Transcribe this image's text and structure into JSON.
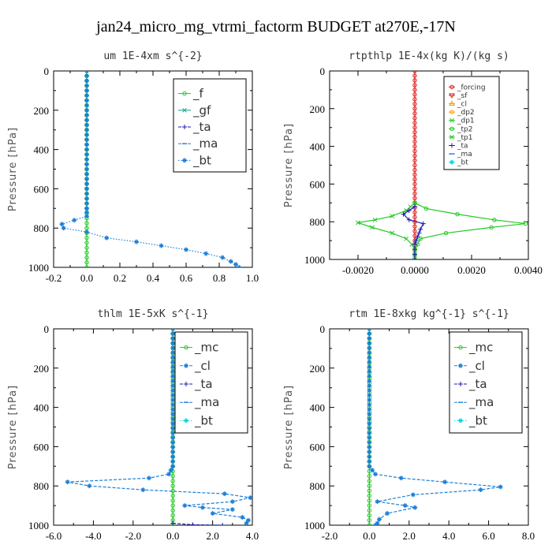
{
  "figure_title": "jan24_micro_mg_vtrmi_factorm  BUDGET at270E,-17N",
  "colors": {
    "green": "#22c922",
    "blue_dash": "#1a7fd9",
    "navy": "#1a1ab0",
    "cyan": "#10d4e6",
    "red": "#e02020",
    "orange": "#f0a000",
    "teal": "#1a9a8a"
  },
  "chart_data": [
    {
      "type": "line",
      "title": "um  1E-4xm s^{-2}",
      "xlabel": "",
      "ylabel": "Pressure [hPa]",
      "xlim": [
        -0.2,
        1.0
      ],
      "ylim": [
        1000,
        0
      ],
      "xticks": [
        -0.2,
        0.0,
        0.2,
        0.4,
        0.6,
        0.8,
        1.0
      ],
      "xtick_labels": [
        "-0.2",
        "0.0",
        "0.2",
        "0.4",
        "0.6",
        "0.8",
        "1.0"
      ],
      "yticks": [
        0,
        200,
        400,
        600,
        800,
        1000
      ],
      "ytick_labels": [
        "0",
        "200",
        "400",
        "600",
        "800",
        "1000"
      ],
      "grid": false,
      "legend": {
        "position": "top-right",
        "size": "large"
      },
      "series": [
        {
          "name": "_f",
          "color": "#22c922",
          "marker": "circle",
          "dash": "solid",
          "points": [
            [
              0,
              0
            ],
            [
              0,
              100
            ],
            [
              0,
              200
            ],
            [
              0,
              300
            ],
            [
              0,
              400
            ],
            [
              0,
              500
            ],
            [
              0,
              600
            ],
            [
              0,
              700
            ],
            [
              0,
              800
            ],
            [
              0,
              900
            ],
            [
              0,
              1000
            ]
          ]
        },
        {
          "name": "_gf",
          "color": "#1a9a8a",
          "marker": "x",
          "dash": "solid",
          "points": []
        },
        {
          "name": "_ta",
          "color": "#1a1ab0",
          "marker": "plus",
          "dash": "dashed",
          "points": []
        },
        {
          "name": "_ma",
          "color": "#1a7fd9",
          "marker": "dash",
          "dash": "dashed",
          "points": []
        },
        {
          "name": "_bt",
          "color": "#1a7fd9",
          "marker": "star",
          "dash": "dotted",
          "points": [
            [
              0,
              0
            ],
            [
              0,
              100
            ],
            [
              0,
              200
            ],
            [
              0,
              300
            ],
            [
              0,
              400
            ],
            [
              0,
              500
            ],
            [
              0,
              600
            ],
            [
              0,
              700
            ],
            [
              0,
              740
            ],
            [
              -0.15,
              780
            ],
            [
              -0.14,
              800
            ],
            [
              0.0,
              820
            ],
            [
              0.12,
              850
            ],
            [
              0.3,
              870
            ],
            [
              0.45,
              890
            ],
            [
              0.6,
              910
            ],
            [
              0.72,
              930
            ],
            [
              0.82,
              950
            ],
            [
              0.87,
              970
            ],
            [
              0.9,
              985
            ],
            [
              0.92,
              1000
            ]
          ]
        }
      ]
    },
    {
      "type": "line",
      "title": "rtpthlp  1E-4x(kg K)/(kg s)",
      "xlabel": "",
      "ylabel": "Pressure [hPa]",
      "xlim": [
        -0.003,
        0.004
      ],
      "ylim": [
        1000,
        0
      ],
      "xticks": [
        -0.002,
        0.0,
        0.002,
        0.004
      ],
      "xtick_labels": [
        "-0.0020",
        "0.0000",
        "0.0020",
        "0.0040"
      ],
      "yticks": [
        0,
        200,
        400,
        600,
        800,
        1000
      ],
      "ytick_labels": [
        "0",
        "200",
        "400",
        "600",
        "800",
        "1000"
      ],
      "grid": false,
      "legend": {
        "position": "top-right",
        "size": "small"
      },
      "series": [
        {
          "name": "_forcing",
          "color": "#e02020",
          "marker": "circle",
          "dash": "solid",
          "points": [
            [
              0,
              0
            ],
            [
              0,
              100
            ],
            [
              0,
              200
            ],
            [
              0,
              300
            ],
            [
              0,
              400
            ],
            [
              0,
              500
            ],
            [
              0,
              600
            ],
            [
              0,
              700
            ],
            [
              0,
              800
            ],
            [
              0,
              900
            ],
            [
              0,
              1000
            ]
          ]
        },
        {
          "name": "_sf",
          "color": "#e02020",
          "marker": "triangle-down",
          "dash": "solid",
          "points": []
        },
        {
          "name": "_cl",
          "color": "#f0a000",
          "marker": "triangle-up",
          "dash": "solid",
          "points": []
        },
        {
          "name": "_dp2",
          "color": "#f0a000",
          "marker": "circle",
          "dash": "solid",
          "points": []
        },
        {
          "name": "_dp1",
          "color": "#22c922",
          "marker": "x",
          "dash": "solid",
          "points": []
        },
        {
          "name": "_tp2",
          "color": "#22c922",
          "marker": "circle",
          "dash": "solid",
          "points": [
            [
              0,
              700
            ],
            [
              0.0004,
              730
            ],
            [
              0.0015,
              760
            ],
            [
              0.0028,
              790
            ],
            [
              0.0039,
              810
            ],
            [
              0.0027,
              830
            ],
            [
              0.0011,
              860
            ],
            [
              0.0002,
              890
            ],
            [
              0.0001,
              920
            ],
            [
              0,
              950
            ],
            [
              0,
              1000
            ]
          ]
        },
        {
          "name": "_tp1",
          "color": "#22c922",
          "marker": "x",
          "dash": "solid",
          "points": [
            [
              0,
              700
            ],
            [
              -0.0003,
              740
            ],
            [
              -0.0008,
              770
            ],
            [
              -0.0014,
              790
            ],
            [
              -0.002,
              805
            ],
            [
              -0.0015,
              830
            ],
            [
              -0.0008,
              860
            ],
            [
              -0.0003,
              890
            ],
            [
              -0.0001,
              920
            ],
            [
              0,
              950
            ],
            [
              0,
              1000
            ]
          ]
        },
        {
          "name": "_ta",
          "color": "#1a1ab0",
          "marker": "plus",
          "dash": "solid",
          "points": [
            [
              0,
              720
            ],
            [
              -0.0004,
              760
            ],
            [
              -0.0002,
              790
            ],
            [
              0.0003,
              810
            ],
            [
              0.0002,
              840
            ],
            [
              0.0001,
              880
            ],
            [
              0,
              920
            ],
            [
              0,
              1000
            ]
          ]
        },
        {
          "name": "_ma",
          "color": "#1a7fd9",
          "marker": "dash",
          "dash": "dashed",
          "points": []
        },
        {
          "name": "_bt",
          "color": "#10d4e6",
          "marker": "star",
          "dash": "dotted",
          "points": []
        }
      ]
    },
    {
      "type": "line",
      "title": "thlm  1E-5xK s^{-1}",
      "xlabel": "",
      "ylabel": "Pressure [hPa]",
      "xlim": [
        -6.0,
        4.0
      ],
      "ylim": [
        1000,
        0
      ],
      "xticks": [
        -6,
        -4,
        -2,
        0,
        2,
        4
      ],
      "xtick_labels": [
        "-6.0",
        "-4.0",
        "-2.0",
        "0.0",
        "2.0",
        "4.0"
      ],
      "yticks": [
        0,
        200,
        400,
        600,
        800,
        1000
      ],
      "ytick_labels": [
        "0",
        "200",
        "400",
        "600",
        "800",
        "1000"
      ],
      "grid": false,
      "legend": {
        "position": "top-right",
        "size": "large"
      },
      "series": [
        {
          "name": "_mc",
          "color": "#22c922",
          "marker": "circle",
          "dash": "solid",
          "points": [
            [
              0,
              0
            ],
            [
              0,
              100
            ],
            [
              0,
              200
            ],
            [
              0,
              300
            ],
            [
              0,
              400
            ],
            [
              0,
              500
            ],
            [
              0,
              600
            ],
            [
              0,
              700
            ],
            [
              0,
              800
            ],
            [
              0,
              900
            ],
            [
              0,
              1000
            ]
          ]
        },
        {
          "name": "_cl",
          "color": "#1a7fd9",
          "marker": "star",
          "dash": "dashed",
          "points": [
            [
              0,
              0
            ],
            [
              0,
              700
            ],
            [
              -0.2,
              740
            ],
            [
              -1.2,
              760
            ],
            [
              -5.3,
              780
            ],
            [
              -4.2,
              800
            ],
            [
              -1.5,
              820
            ],
            [
              2.6,
              840
            ],
            [
              3.9,
              860
            ],
            [
              3.0,
              880
            ],
            [
              0.6,
              900
            ],
            [
              1.5,
              910
            ],
            [
              3.0,
              920
            ],
            [
              2.0,
              940
            ],
            [
              3.5,
              960
            ],
            [
              3.8,
              975
            ],
            [
              3.7,
              990
            ]
          ]
        },
        {
          "name": "_ta",
          "color": "#1a1ab0",
          "marker": "plus",
          "dash": "dashed",
          "points": [
            [
              0,
              990
            ],
            [
              1.0,
              998
            ],
            [
              2.5,
              1000
            ]
          ]
        },
        {
          "name": "_ma",
          "color": "#1a7fd9",
          "marker": "dash",
          "dash": "dashed",
          "points": []
        },
        {
          "name": "_bt",
          "color": "#10d4e6",
          "marker": "star",
          "dash": "dotted",
          "points": []
        }
      ]
    },
    {
      "type": "line",
      "title": "rtm  1E-8xkg kg^{-1} s^{-1}",
      "xlabel": "",
      "ylabel": "Pressure [hPa]",
      "xlim": [
        -2.0,
        8.0
      ],
      "ylim": [
        1000,
        0
      ],
      "xticks": [
        -2,
        0,
        2,
        4,
        6,
        8
      ],
      "xtick_labels": [
        "-2.0",
        "0.0",
        "2.0",
        "4.0",
        "6.0",
        "8.0"
      ],
      "yticks": [
        0,
        200,
        400,
        600,
        800,
        1000
      ],
      "ytick_labels": [
        "0",
        "200",
        "400",
        "600",
        "800",
        "1000"
      ],
      "grid": false,
      "legend": {
        "position": "top-right",
        "size": "large"
      },
      "series": [
        {
          "name": "_mc",
          "color": "#22c922",
          "marker": "circle",
          "dash": "solid",
          "points": [
            [
              0,
              0
            ],
            [
              0,
              100
            ],
            [
              0,
              200
            ],
            [
              0,
              300
            ],
            [
              0,
              400
            ],
            [
              0,
              500
            ],
            [
              0,
              600
            ],
            [
              0,
              700
            ],
            [
              0,
              800
            ],
            [
              0,
              900
            ],
            [
              0,
              1000
            ]
          ]
        },
        {
          "name": "_cl",
          "color": "#1a7fd9",
          "marker": "star",
          "dash": "dashed",
          "points": [
            [
              0,
              0
            ],
            [
              0,
              700
            ],
            [
              0.3,
              740
            ],
            [
              1.6,
              760
            ],
            [
              3.8,
              780
            ],
            [
              6.6,
              805
            ],
            [
              5.6,
              820
            ],
            [
              2.2,
              845
            ],
            [
              0.4,
              880
            ],
            [
              1.8,
              900
            ],
            [
              2.3,
              910
            ],
            [
              0.9,
              940
            ],
            [
              0.5,
              970
            ],
            [
              0.4,
              990
            ],
            [
              0.3,
              1000
            ]
          ]
        },
        {
          "name": "_ta",
          "color": "#1a1ab0",
          "marker": "plus",
          "dash": "dashed",
          "points": []
        },
        {
          "name": "_ma",
          "color": "#1a7fd9",
          "marker": "dash",
          "dash": "dashed",
          "points": []
        },
        {
          "name": "_bt",
          "color": "#10d4e6",
          "marker": "star",
          "dash": "dotted",
          "points": []
        }
      ]
    }
  ]
}
